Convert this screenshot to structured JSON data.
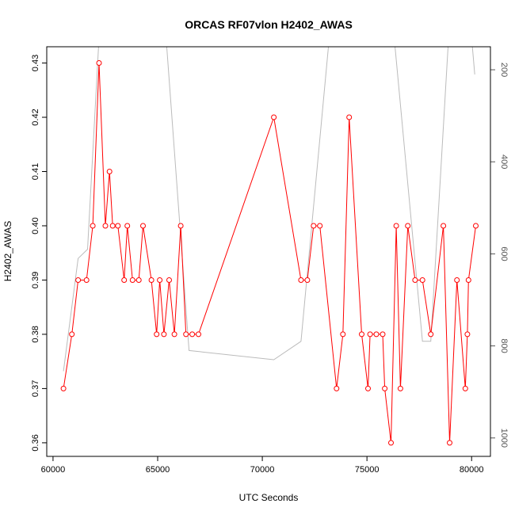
{
  "chart_data": {
    "type": "line",
    "title": "ORCAS RF07vlon H2402_AWAS",
    "xlabel": "UTC Seconds",
    "ylabel": "H2402_AWAS",
    "xlim": [
      59700,
      80900
    ],
    "ylim": [
      0.3575,
      0.433
    ],
    "x_ticks": [
      60000,
      65000,
      70000,
      75000,
      80000
    ],
    "y_ticks": [
      0.36,
      0.37,
      0.38,
      0.39,
      0.4,
      0.41,
      0.42,
      0.43
    ],
    "y2_lim": [
      1040,
      150
    ],
    "y2_ticks": [
      200,
      400,
      600,
      800,
      1000
    ],
    "grid": false,
    "legend": "none",
    "colors": {
      "primary": "#ff0000",
      "secondary": "#bbbbbb"
    },
    "series": [
      {
        "axis": "left",
        "style": "line+open-circle",
        "points": [
          [
            60500,
            0.37
          ],
          [
            60900,
            0.38
          ],
          [
            61200,
            0.39
          ],
          [
            61600,
            0.39
          ],
          [
            61900,
            0.4
          ],
          [
            62200,
            0.43
          ],
          [
            62500,
            0.4
          ],
          [
            62700,
            0.41
          ],
          [
            62850,
            0.4
          ],
          [
            63100,
            0.4
          ],
          [
            63400,
            0.39
          ],
          [
            63550,
            0.4
          ],
          [
            63800,
            0.39
          ],
          [
            64100,
            0.39
          ],
          [
            64300,
            0.4
          ],
          [
            64700,
            0.39
          ],
          [
            64950,
            0.38
          ],
          [
            65100,
            0.39
          ],
          [
            65300,
            0.38
          ],
          [
            65550,
            0.39
          ],
          [
            65800,
            0.38
          ],
          [
            66100,
            0.4
          ],
          [
            66350,
            0.38
          ],
          [
            66650,
            0.38
          ],
          [
            66950,
            0.38
          ],
          [
            70550,
            0.42
          ],
          [
            71850,
            0.39
          ],
          [
            72150,
            0.39
          ],
          [
            72450,
            0.4
          ],
          [
            72750,
            0.4
          ],
          [
            73550,
            0.37
          ],
          [
            73850,
            0.38
          ],
          [
            74150,
            0.42
          ],
          [
            74750,
            0.38
          ],
          [
            75050,
            0.37
          ],
          [
            75150,
            0.38
          ],
          [
            75450,
            0.38
          ],
          [
            75750,
            0.38
          ],
          [
            75850,
            0.37
          ],
          [
            76150,
            0.36
          ],
          [
            76400,
            0.4
          ],
          [
            76600,
            0.37
          ],
          [
            76950,
            0.4
          ],
          [
            77300,
            0.39
          ],
          [
            77650,
            0.39
          ],
          [
            78050,
            0.38
          ],
          [
            78650,
            0.4
          ],
          [
            78950,
            0.36
          ],
          [
            79300,
            0.39
          ],
          [
            79700,
            0.37
          ],
          [
            79800,
            0.38
          ],
          [
            79850,
            0.39
          ],
          [
            80200,
            0.4
          ]
        ]
      },
      {
        "axis": "right",
        "style": "line",
        "points": [
          [
            60500,
            855
          ],
          [
            61200,
            610
          ],
          [
            61650,
            590
          ],
          [
            62200,
            130
          ],
          [
            63000,
            130
          ],
          [
            64100,
            130
          ],
          [
            65400,
            130
          ],
          [
            66500,
            810
          ],
          [
            70550,
            830
          ],
          [
            71850,
            790
          ],
          [
            73200,
            130
          ],
          [
            76300,
            130
          ],
          [
            77650,
            790
          ],
          [
            78050,
            790
          ],
          [
            78900,
            130
          ],
          [
            80000,
            130
          ],
          [
            80150,
            210
          ]
        ]
      }
    ]
  }
}
